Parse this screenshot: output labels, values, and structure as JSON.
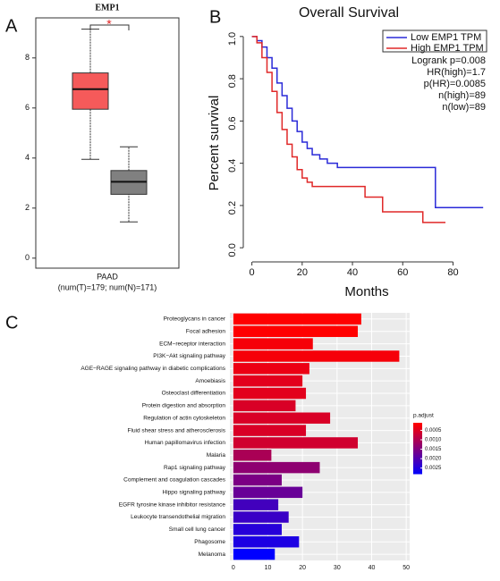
{
  "chart_data": [
    {
      "type": "box",
      "panel": "A",
      "title": "EMP1",
      "annotation": "*",
      "categories": [
        "PAAD"
      ],
      "subtitle": "(num(T)=179; num(N)=171)",
      "boxes": [
        {
          "color": "#f55a5a",
          "whislo": 3.95,
          "q1": 5.95,
          "med": 6.75,
          "q3": 7.4,
          "whishi": 9.15
        },
        {
          "color": "#808080",
          "whislo": 1.45,
          "q1": 2.55,
          "med": 3.05,
          "q3": 3.5,
          "whishi": 4.45
        }
      ],
      "ylim": [
        -0.4,
        9.6
      ],
      "yticks": [
        0,
        2,
        4,
        6,
        8
      ]
    },
    {
      "type": "step",
      "panel": "B",
      "title": "Overall Survival",
      "x_label": "Months",
      "y_label": "Percent survival",
      "series": [
        {
          "name": "Low EMP1 TPM",
          "color": "#2a2ad8",
          "x": [
            0,
            2,
            4,
            6,
            8,
            10,
            12,
            14,
            16,
            18,
            20,
            22,
            24,
            27,
            30,
            34,
            73,
            92
          ],
          "values": [
            1,
            0.98,
            0.95,
            0.9,
            0.85,
            0.78,
            0.72,
            0.66,
            0.6,
            0.55,
            0.5,
            0.47,
            0.44,
            0.42,
            0.4,
            0.38,
            0.19,
            0.19
          ]
        },
        {
          "name": "High EMP1 TPM",
          "color": "#e02828",
          "x": [
            0,
            2,
            4,
            6,
            8,
            10,
            12,
            14,
            16,
            18,
            20,
            22,
            24,
            45,
            52,
            68,
            77
          ],
          "values": [
            1,
            0.97,
            0.9,
            0.83,
            0.74,
            0.64,
            0.56,
            0.49,
            0.43,
            0.37,
            0.33,
            0.31,
            0.29,
            0.24,
            0.17,
            0.12,
            0.12
          ]
        }
      ],
      "annotations": [
        "Logrank p=0.008",
        "HR(high)=1.7",
        "p(HR)=0.0085",
        "n(high)=89",
        "n(low)=89"
      ],
      "xlim": [
        -2,
        93
      ],
      "xticks": [
        0,
        20,
        40,
        60,
        80
      ],
      "ylim": [
        -0.05,
        1.05
      ],
      "yticks": [
        {
          "value": 0,
          "label": "0.0"
        },
        0.2,
        0.4,
        0.6,
        0.8,
        {
          "value": 1,
          "label": "1.0"
        }
      ]
    },
    {
      "type": "hbar",
      "panel": "C",
      "categories": [
        "Proteoglycans in cancer",
        "Focal adhesion",
        "ECM−receptor interaction",
        "PI3K−Akt signaling pathway",
        "AGE−RAGE signaling pathway in diabetic complications",
        "Amoebiasis",
        "Osteoclast differentiation",
        "Protein digestion and absorption",
        "Regulation of actin cytoskeleton",
        "Fluid shear stress and atherosclerosis",
        "Human papillomavirus infection",
        "Malaria",
        "Rap1 signaling pathway",
        "Complement and coagulation cascades",
        "Hippo signaling pathway",
        "EGFR tyrosine kinase inhibitor resistance",
        "Leukocyte transendothelial migration",
        "Small cell lung cancer",
        "Phagosome",
        "Melanoma"
      ],
      "values": [
        37,
        36,
        23,
        48,
        22,
        20,
        21,
        18,
        28,
        21,
        36,
        11,
        25,
        14,
        20,
        13,
        16,
        14,
        19,
        12
      ],
      "p_adjust": [
        0.0001,
        0.0001,
        0.0002,
        0.0002,
        0.0003,
        0.0004,
        0.0004,
        0.0005,
        0.0005,
        0.0005,
        0.0006,
        0.001,
        0.0013,
        0.0015,
        0.0017,
        0.0021,
        0.0022,
        0.0024,
        0.0025,
        0.0028
      ],
      "colorbar_title": "p.adjust",
      "clim": [
        0.0001,
        0.0028
      ],
      "color_low": "#ff0000",
      "color_high": "#0000ff",
      "colorbar_ticks": [
        0.0005,
        {
          "value": 0.001,
          "label": "0.0010"
        },
        0.0015,
        {
          "value": 0.002,
          "label": "0.0020"
        },
        0.0025
      ],
      "xlim": [
        -1,
        51
      ],
      "xticks": [
        0,
        10,
        20,
        30,
        40,
        50
      ],
      "grid": true
    }
  ]
}
